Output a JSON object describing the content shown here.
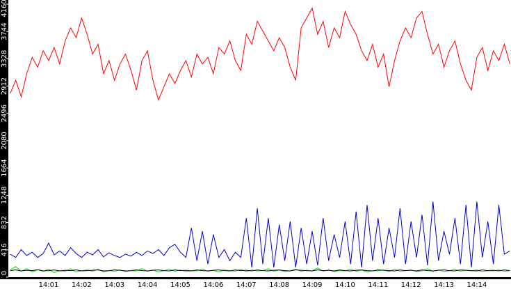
{
  "chart_data": {
    "type": "line",
    "categories": [
      null,
      null,
      null,
      null,
      null,
      null,
      null,
      "14:01",
      null,
      null,
      null,
      null,
      null,
      "14:02",
      null,
      null,
      null,
      null,
      null,
      "14:03",
      null,
      null,
      null,
      null,
      null,
      "14:04",
      null,
      null,
      null,
      null,
      null,
      "14:05",
      null,
      null,
      null,
      null,
      null,
      "14:06",
      null,
      null,
      null,
      null,
      null,
      "14:07",
      null,
      null,
      null,
      null,
      null,
      "14:08",
      null,
      null,
      null,
      null,
      null,
      "14:09",
      null,
      null,
      null,
      null,
      null,
      "14:10",
      null,
      null,
      null,
      null,
      null,
      "14:11",
      null,
      null,
      null,
      null,
      null,
      "14:12",
      null,
      null,
      null,
      null,
      null,
      "14:13",
      null,
      null,
      null,
      null,
      null,
      "14:14",
      null,
      null,
      null,
      null,
      null,
      null
    ],
    "series": [
      {
        "color": "#ff0000",
        "values": [
          2800,
          3000,
          2750,
          3100,
          3350,
          3200,
          3450,
          3300,
          3500,
          3250,
          3600,
          3800,
          3650,
          3950,
          3700,
          3400,
          3550,
          3100,
          3300,
          3000,
          3250,
          3400,
          3150,
          2850,
          3300,
          3450,
          3000,
          2700,
          2900,
          3100,
          2950,
          3150,
          3300,
          3050,
          3400,
          3250,
          3350,
          3100,
          3500,
          3400,
          3600,
          3300,
          3150,
          3700,
          3550,
          3900,
          3750,
          3600,
          3450,
          3650,
          3500,
          3200,
          3000,
          3800,
          3950,
          4100,
          3700,
          3900,
          3500,
          3800,
          3650,
          4050,
          3850,
          3700,
          3450,
          3300,
          3550,
          3200,
          3400,
          2900,
          3300,
          3600,
          3800,
          3650,
          3950,
          4050,
          3700,
          3400,
          3550,
          3200,
          3450,
          3600,
          3250,
          3000,
          2850,
          3350,
          3500,
          3150,
          3450,
          3300,
          3550,
          3250
        ]
      },
      {
        "color": "#0000cc",
        "values": [
          350,
          300,
          420,
          330,
          380,
          300,
          360,
          520,
          340,
          400,
          330,
          450,
          360,
          300,
          380,
          340,
          420,
          310,
          370,
          330,
          300,
          350,
          320,
          380,
          330,
          400,
          360,
          420,
          330,
          450,
          500,
          380,
          300,
          750,
          250,
          700,
          200,
          650,
          300,
          420,
          250,
          380,
          300,
          900,
          150,
          1050,
          200,
          900,
          150,
          800,
          250,
          850,
          150,
          750,
          200,
          700,
          180,
          900,
          250,
          650,
          300,
          850,
          200,
          1000,
          150,
          1100,
          250,
          900,
          200,
          750,
          300,
          1050,
          200,
          850,
          300,
          950,
          180,
          1150,
          250,
          700,
          350,
          900,
          200,
          1100,
          150,
          1150,
          300,
          850,
          200,
          1100,
          350,
          400
        ]
      },
      {
        "color": "#00dd00",
        "values": [
          110,
          160,
          90,
          130,
          80,
          110,
          90,
          120,
          70,
          100,
          90,
          130,
          80,
          100,
          110,
          90,
          120,
          80,
          100,
          90,
          110,
          85,
          100,
          95,
          130,
          90,
          110,
          80,
          100,
          120,
          90,
          110,
          85,
          100,
          95,
          120,
          90,
          105,
          80,
          110,
          100,
          90,
          120,
          85,
          110,
          95,
          100,
          130,
          90,
          110,
          85,
          100,
          120,
          90,
          105,
          95,
          140,
          90,
          110,
          85,
          100,
          95,
          120,
          90,
          110,
          80,
          100,
          95,
          110,
          85,
          120,
          90,
          100,
          110,
          85,
          95,
          130,
          90,
          110,
          85,
          100,
          120,
          90,
          105,
          95,
          110,
          85,
          100,
          95,
          110,
          90,
          100
        ]
      },
      {
        "color": "#000000",
        "values": [
          100,
          110,
          95,
          105,
          100,
          115,
          95,
          100,
          110,
          95,
          105,
          100,
          110,
          95,
          100,
          105,
          110,
          95,
          100,
          110,
          105,
          95,
          100,
          110,
          100,
          95,
          105,
          110,
          100,
          95,
          110,
          100,
          105,
          95,
          110,
          100,
          95,
          105,
          110,
          100,
          95,
          110,
          100,
          105,
          95,
          110,
          100,
          95,
          105,
          110,
          100,
          95,
          110,
          105,
          100,
          95,
          110,
          100,
          105,
          95,
          110,
          100,
          95,
          105,
          110,
          100,
          95,
          110,
          105,
          100,
          95,
          110,
          100,
          105,
          95,
          110,
          100,
          95,
          105,
          110,
          100,
          95,
          110,
          105,
          100,
          95,
          110,
          100,
          105,
          95,
          110,
          100
        ]
      }
    ],
    "ylim": [
      0,
      4160
    ],
    "yticks": [
      0,
      416,
      832,
      1248,
      1664,
      2080,
      2496,
      2912,
      3328,
      3744,
      4160
    ]
  }
}
